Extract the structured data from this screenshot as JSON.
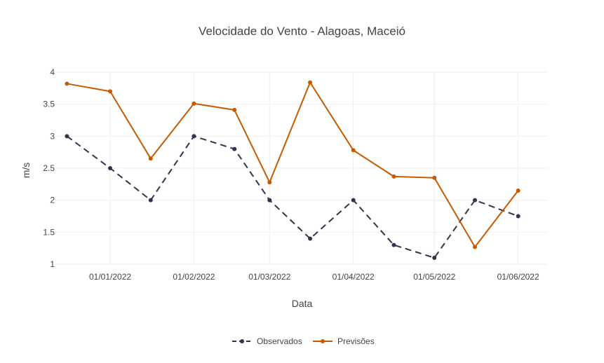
{
  "chart_data": {
    "type": "line",
    "title": "Velocidade do Vento - Alagoas, Maceió",
    "xlabel": "Data",
    "ylabel": "m/s",
    "xlim": [
      "2021-12-12",
      "2022-06-12"
    ],
    "ylim": [
      1,
      4
    ],
    "x_ticks": [
      {
        "value": "2022-01-01",
        "label": "01/01/2022"
      },
      {
        "value": "2022-02-01",
        "label": "01/02/2022"
      },
      {
        "value": "2022-03-01",
        "label": "01/03/2022"
      },
      {
        "value": "2022-04-01",
        "label": "01/04/2022"
      },
      {
        "value": "2022-05-01",
        "label": "01/05/2022"
      },
      {
        "value": "2022-06-01",
        "label": "01/06/2022"
      }
    ],
    "y_ticks": [
      {
        "value": 1,
        "label": "1"
      },
      {
        "value": 1.5,
        "label": "1.5"
      },
      {
        "value": 2,
        "label": "2"
      },
      {
        "value": 2.5,
        "label": "2.5"
      },
      {
        "value": 3,
        "label": "3"
      },
      {
        "value": 3.5,
        "label": "3.5"
      },
      {
        "value": 4,
        "label": "4"
      }
    ],
    "grid": true,
    "legend_position": "bottom-center",
    "series": [
      {
        "name": "Observados",
        "color": "#33334d",
        "dash": "dashed",
        "x": [
          "2021-12-16",
          "2022-01-01",
          "2022-01-16",
          "2022-02-01",
          "2022-02-16",
          "2022-03-01",
          "2022-03-16",
          "2022-04-01",
          "2022-04-16",
          "2022-05-01",
          "2022-05-16",
          "2022-06-01"
        ],
        "values": [
          3.0,
          2.5,
          2.0,
          3.0,
          2.8,
          2.0,
          1.4,
          2.0,
          1.3,
          1.1,
          2.0,
          1.75
        ]
      },
      {
        "name": "Previsões",
        "color": "#c55a00",
        "dash": "solid",
        "x": [
          "2021-12-16",
          "2022-01-01",
          "2022-01-16",
          "2022-02-01",
          "2022-02-16",
          "2022-03-01",
          "2022-03-16",
          "2022-04-01",
          "2022-04-16",
          "2022-05-01",
          "2022-05-16",
          "2022-06-01"
        ],
        "values": [
          3.82,
          3.7,
          2.65,
          3.51,
          3.41,
          2.28,
          3.84,
          2.78,
          2.37,
          2.35,
          1.27,
          2.15
        ]
      }
    ]
  }
}
